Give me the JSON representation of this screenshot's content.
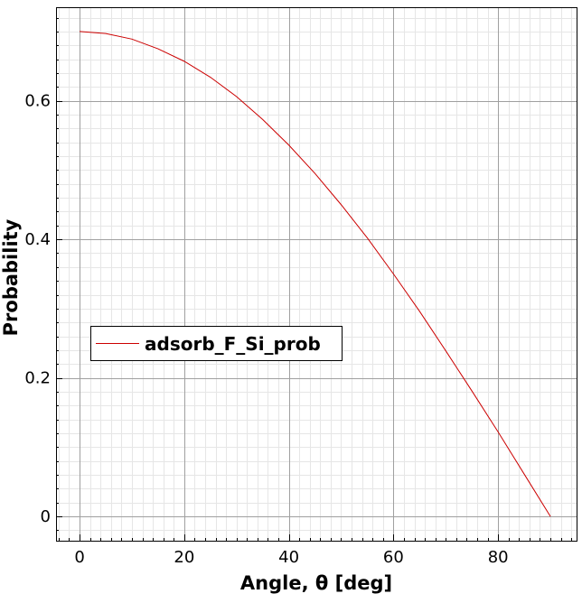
{
  "chart_data": {
    "type": "line",
    "title": "",
    "xlabel": "Angle, θ [deg]",
    "ylabel": "Probability",
    "xlim": [
      -4.5,
      95
    ],
    "ylim": [
      -0.035,
      0.735
    ],
    "x_ticks": [
      0,
      20,
      40,
      60,
      80
    ],
    "x_tick_labels": [
      "0",
      "20",
      "40",
      "60",
      "80"
    ],
    "y_ticks": [
      0,
      0.2,
      0.4,
      0.6
    ],
    "y_tick_labels": [
      "0",
      "0.2",
      "0.4",
      "0.6"
    ],
    "grid": true,
    "minor_grid": true,
    "legend_position": "middle-left",
    "series": [
      {
        "name": "adsorb_F_Si_prob",
        "color": "#cc0000",
        "x": [
          0,
          5,
          10,
          15,
          20,
          25,
          30,
          35,
          40,
          45,
          50,
          55,
          60,
          65,
          70,
          75,
          80,
          85,
          90
        ],
        "y": [
          0.7,
          0.697,
          0.689,
          0.675,
          0.657,
          0.634,
          0.606,
          0.573,
          0.536,
          0.495,
          0.45,
          0.402,
          0.35,
          0.296,
          0.239,
          0.181,
          0.122,
          0.061,
          0.0
        ]
      }
    ]
  }
}
